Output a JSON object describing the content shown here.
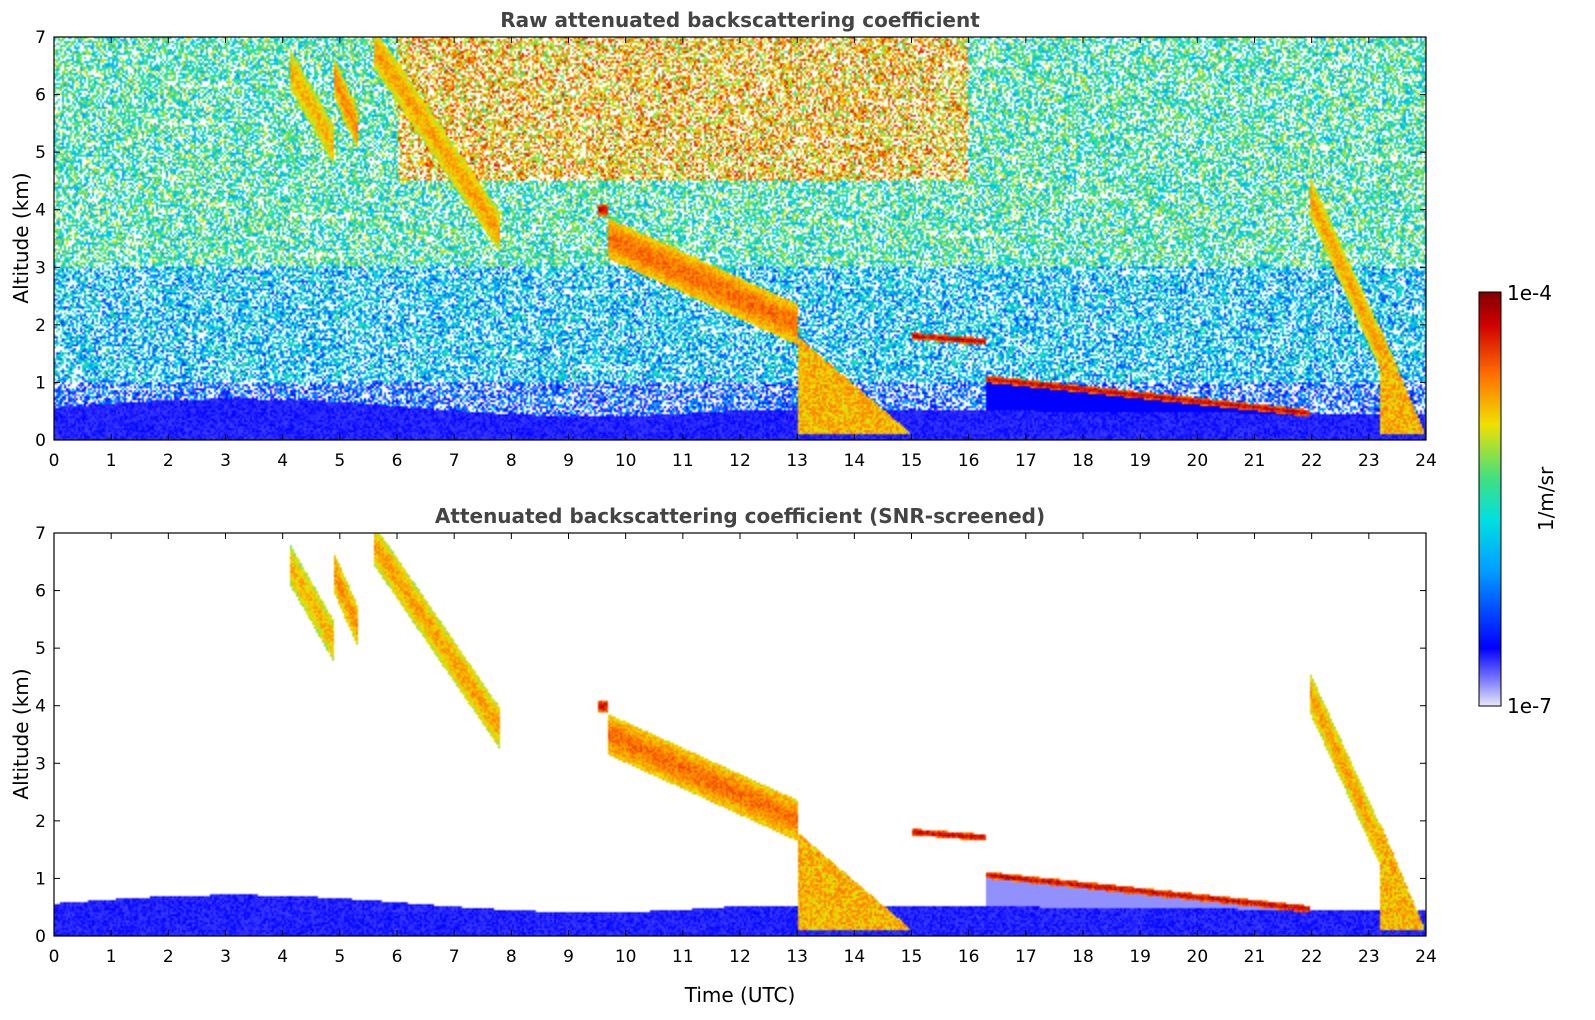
{
  "chart_data": [
    {
      "type": "heatmap",
      "title": "Raw attenuated backscattering coefficient",
      "xlabel": "",
      "ylabel": "Altitude (km)",
      "xlim": [
        0,
        24
      ],
      "ylim": [
        0,
        7
      ],
      "x_ticks": [
        "0",
        "1",
        "2",
        "3",
        "4",
        "5",
        "6",
        "7",
        "8",
        "9",
        "10",
        "11",
        "12",
        "13",
        "14",
        "15",
        "16",
        "17",
        "18",
        "19",
        "20",
        "21",
        "22",
        "23",
        "24"
      ],
      "y_ticks": [
        "0",
        "1",
        "2",
        "3",
        "4",
        "5",
        "6",
        "7"
      ],
      "background_noise": {
        "description": "speckled noise at all altitudes, increasing with height",
        "bands": [
          {
            "alt_range": [
              0,
              0.4
            ],
            "level": 0.12
          },
          {
            "alt_range": [
              0.4,
              1.0
            ],
            "level": 0.22
          },
          {
            "alt_range": [
              1.0,
              3.0
            ],
            "level": 0.38
          },
          {
            "alt_range": [
              3.0,
              7.0
            ],
            "level": 0.5
          }
        ],
        "warm_region": {
          "time_range": [
            6,
            16
          ],
          "alt_range": [
            4.5,
            7
          ],
          "level": 0.82
        }
      },
      "features": [
        {
          "name": "boundary layer",
          "time": [
            0,
            24
          ],
          "alt_top": [
            0.55,
            0.6,
            0.45
          ],
          "level": 0.1
        },
        {
          "name": "cirrus streak 1",
          "time": [
            4.1,
            4.9
          ],
          "alt": [
            6.5,
            5.1
          ],
          "level": 0.78
        },
        {
          "name": "cirrus streak 2",
          "time": [
            4.9,
            5.3
          ],
          "alt": [
            6.3,
            5.4
          ],
          "level": 0.82
        },
        {
          "name": "cirrus band",
          "time": [
            5.6,
            7.8
          ],
          "alt": [
            6.8,
            3.6
          ],
          "level": 0.8
        },
        {
          "name": "cloud patch",
          "time": [
            9.5,
            9.7
          ],
          "alt": [
            4.0,
            4.0
          ],
          "level": 0.97
        },
        {
          "name": "descending clouds",
          "time": [
            9.7,
            13.0
          ],
          "alt": [
            3.5,
            2.0
          ],
          "level": 0.85
        },
        {
          "name": "deep cloud",
          "time": [
            13.0,
            15.0
          ],
          "alt": [
            1.8,
            0.1
          ],
          "level": 0.8
        },
        {
          "name": "elevated cloud",
          "time": [
            15.0,
            16.3
          ],
          "alt": [
            1.8,
            1.7
          ],
          "level": 0.97
        },
        {
          "name": "stratocumulus top",
          "time": [
            16.3,
            22.0
          ],
          "alt": [
            1.05,
            0.45
          ],
          "level": 0.97
        },
        {
          "name": "evening cloud",
          "time": [
            22.0,
            23.2
          ],
          "alt": [
            4.2,
            1.6
          ],
          "level": 0.8
        },
        {
          "name": "late cloud",
          "time": [
            23.2,
            24.0
          ],
          "alt": [
            2.0,
            0.1
          ],
          "level": 0.8
        }
      ]
    },
    {
      "type": "heatmap",
      "title": "Attenuated backscattering coefficient (SNR-screened)",
      "xlabel": "Time (UTC)",
      "ylabel": "Altitude (km)",
      "xlim": [
        0,
        24
      ],
      "ylim": [
        0,
        7
      ],
      "x_ticks": [
        "0",
        "1",
        "2",
        "3",
        "4",
        "5",
        "6",
        "7",
        "8",
        "9",
        "10",
        "11",
        "12",
        "13",
        "14",
        "15",
        "16",
        "17",
        "18",
        "19",
        "20",
        "21",
        "22",
        "23",
        "24"
      ],
      "y_ticks": [
        "0",
        "1",
        "2",
        "3",
        "4",
        "5",
        "6",
        "7"
      ],
      "background_noise": "screened (white)"
    }
  ],
  "colorbar": {
    "label": "1/m/sr",
    "max_label": "1e-4",
    "min_label": "1e-7",
    "scale": "log",
    "colormap": [
      "#e8e8f8",
      "#0000ff",
      "#00c8ff",
      "#40e080",
      "#f0e000",
      "#ff7000",
      "#d00000",
      "#800000"
    ]
  }
}
